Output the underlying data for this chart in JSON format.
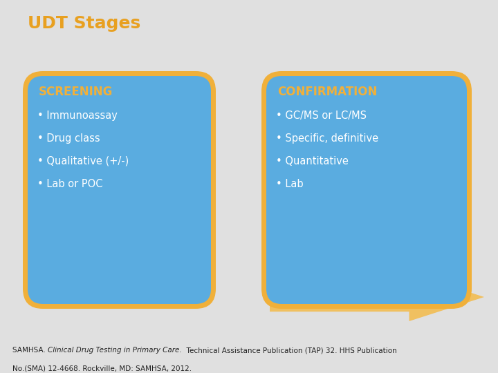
{
  "title": "UDT Stages",
  "title_color": "#E8A020",
  "title_fontsize": 18,
  "background_color": "#E0E0E0",
  "box1_title": "SCREENING",
  "box1_bullets": [
    "• Immunoassay",
    "• Drug class",
    "• Qualitative (+/-)",
    "• Lab or POC"
  ],
  "box2_title": "CONFIRMATION",
  "box2_bullets": [
    "• GC/MS or LC/MS",
    "• Specific, definitive",
    "• Quantitative",
    "• Lab"
  ],
  "box_fill_color": "#5AACE0",
  "box_border_color": "#F0B03A",
  "box_title_color": "#F0B03A",
  "box_text_color": "#FFFFFF",
  "arrow_color": "#F0C060",
  "footnote_normal1": "SAMHSA. ",
  "footnote_italic": "Clinical Drug Testing in Primary Care.",
  "footnote_normal2": "  Technical Assistance Publication (TAP) 32. HHS Publication",
  "footnote_line2": "No.(SMA) 12-4668. Rockville, MD: SAMHSA, 2012.",
  "footnote_color": "#222222",
  "footnote_fontsize": 7.5
}
